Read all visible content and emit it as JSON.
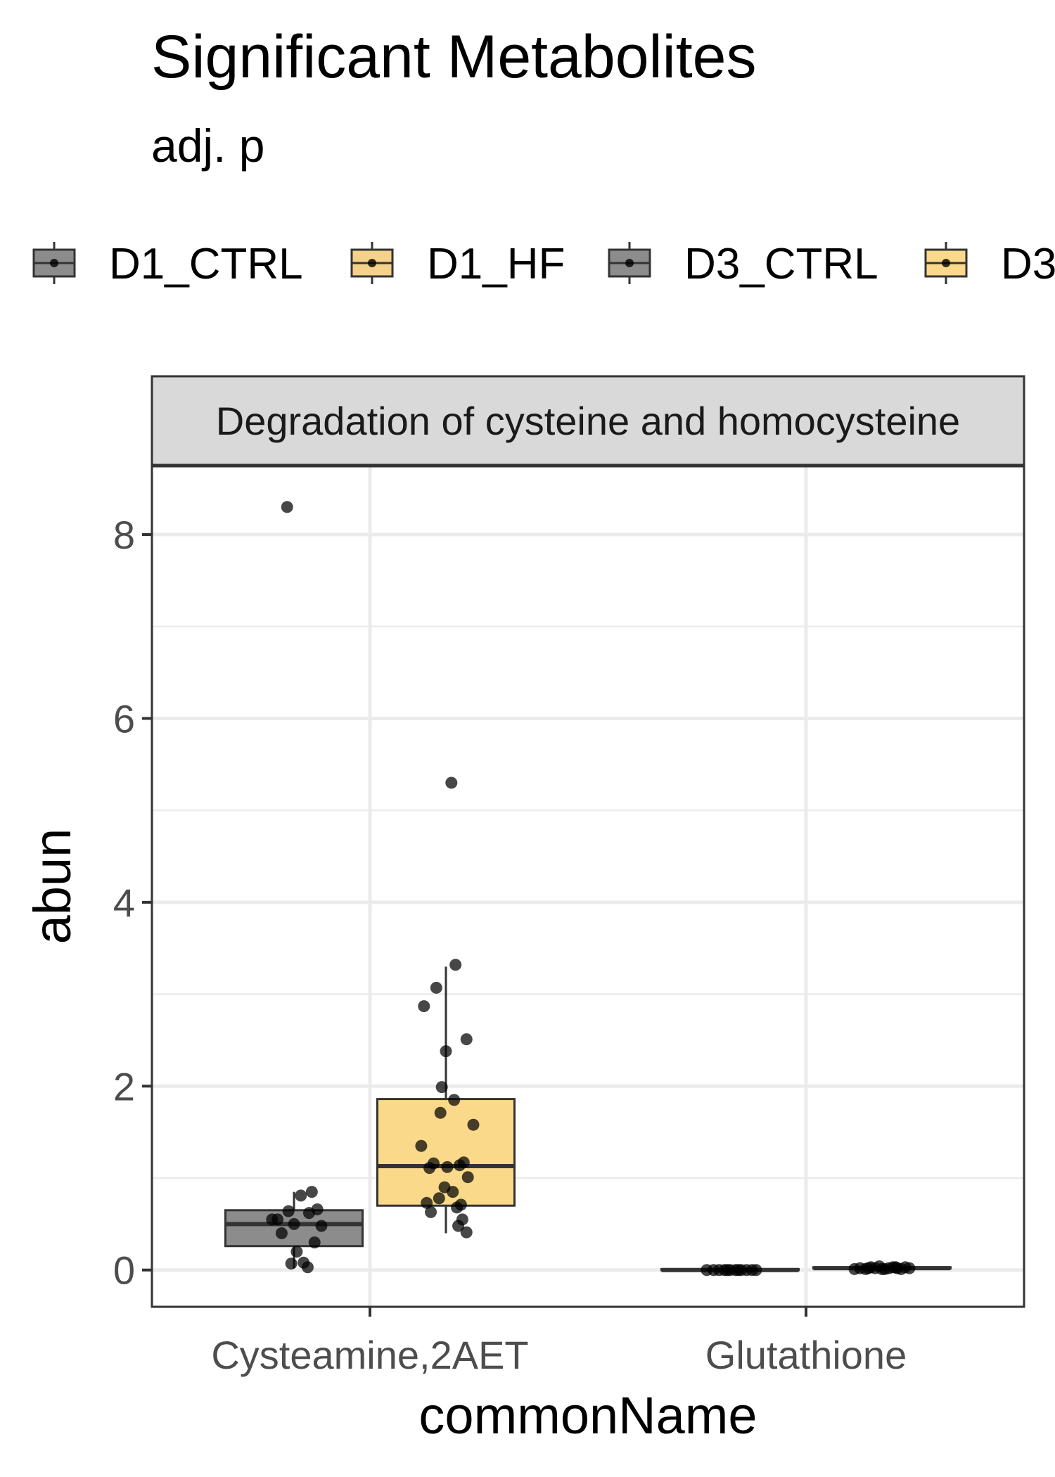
{
  "chart_data": {
    "type": "box",
    "title": "Significant Metabolites",
    "subtitle": "adj. p",
    "facet_label": "Degradation of cysteine and homocysteine",
    "xlabel": "commonName",
    "ylabel": "abun",
    "categories": [
      "Cysteamine,2AET",
      "Glutathione"
    ],
    "ylim": [
      -0.4,
      8.75
    ],
    "yticks": [
      0,
      2,
      4,
      6,
      8
    ],
    "grid": true,
    "legend_position": "top",
    "legend": [
      {
        "name": "D1_CTRL",
        "color": "#8c8c8c"
      },
      {
        "name": "D1_HF",
        "color": "#f5d28a"
      },
      {
        "name": "D3_CTRL",
        "color": "#8c8c8c"
      },
      {
        "name": "D3",
        "color": "#fbd98a"
      }
    ],
    "boxes": [
      {
        "category": "Cysteamine,2AET",
        "group": "D1_CTRL",
        "slot": 0,
        "color": "#8c8c8c",
        "min": 0.02,
        "q1": 0.26,
        "median": 0.5,
        "q3": 0.65,
        "max": 0.85
      },
      {
        "category": "Cysteamine,2AET",
        "group": "D1_HF",
        "slot": 1,
        "color": "#fbd98a",
        "min": 0.4,
        "q1": 0.7,
        "median": 1.13,
        "q3": 1.86,
        "max": 3.3
      },
      {
        "category": "Glutathione",
        "group": "D1_CTRL",
        "slot": 0,
        "color": "#8c8c8c",
        "min": 0.0,
        "q1": 0.0,
        "median": 0.0,
        "q3": 0.01,
        "max": 0.01
      },
      {
        "category": "Glutathione",
        "group": "D1_HF",
        "slot": 1,
        "color": "#fbd98a",
        "min": 0.01,
        "q1": 0.02,
        "median": 0.02,
        "q3": 0.03,
        "max": 0.04
      }
    ],
    "points": [
      {
        "category": "Cysteamine,2AET",
        "slot": 0,
        "offsets": [
          -0.05,
          0.13,
          -0.12,
          0.05,
          0.17,
          -0.04,
          0.11,
          -0.16,
          0.0,
          0.2,
          -0.09,
          0.15,
          0.02,
          0.07,
          -0.02,
          0.1
        ],
        "values": [
          8.3,
          0.85,
          0.55,
          0.81,
          0.66,
          0.64,
          0.62,
          0.55,
          0.5,
          0.48,
          0.4,
          0.3,
          0.2,
          0.08,
          0.07,
          0.03
        ]
      },
      {
        "category": "Cysteamine,2AET",
        "slot": 1,
        "offsets": [
          0.04,
          0.07,
          -0.07,
          -0.16,
          0.15,
          0.0,
          -0.03,
          0.06,
          -0.04,
          0.2,
          -0.18,
          0.13,
          -0.09,
          0.1,
          0.01,
          -0.12,
          0.16,
          -0.01,
          0.05,
          -0.05,
          -0.14,
          0.11,
          0.08,
          -0.11,
          0.12,
          0.09,
          0.15
        ],
        "values": [
          5.3,
          3.32,
          3.07,
          2.87,
          2.51,
          2.38,
          1.99,
          1.85,
          1.71,
          1.58,
          1.35,
          1.17,
          1.16,
          1.14,
          1.12,
          1.11,
          1.01,
          0.9,
          0.85,
          0.78,
          0.73,
          0.71,
          0.68,
          0.63,
          0.55,
          0.48,
          0.41
        ]
      },
      {
        "category": "Glutathione",
        "slot": 0,
        "offsets": [
          -0.17,
          -0.12,
          -0.08,
          -0.04,
          0.0,
          0.04,
          0.08,
          0.12,
          0.16,
          0.19,
          -0.02,
          0.06
        ],
        "values": [
          0.0,
          0.0,
          0.0,
          0.0,
          0.0,
          0.0,
          0.0,
          0.0,
          0.0,
          0.0,
          0.0,
          0.0
        ]
      },
      {
        "category": "Glutathione",
        "slot": 1,
        "offsets": [
          -0.2,
          -0.16,
          -0.12,
          -0.08,
          -0.05,
          -0.02,
          0.02,
          0.05,
          0.08,
          0.11,
          0.14,
          0.17,
          0.2,
          -0.1,
          0.0,
          0.1
        ],
        "values": [
          0.01,
          0.02,
          0.01,
          0.03,
          0.02,
          0.04,
          0.01,
          0.02,
          0.03,
          0.02,
          0.01,
          0.03,
          0.02,
          0.02,
          0.01,
          0.03
        ]
      }
    ]
  }
}
